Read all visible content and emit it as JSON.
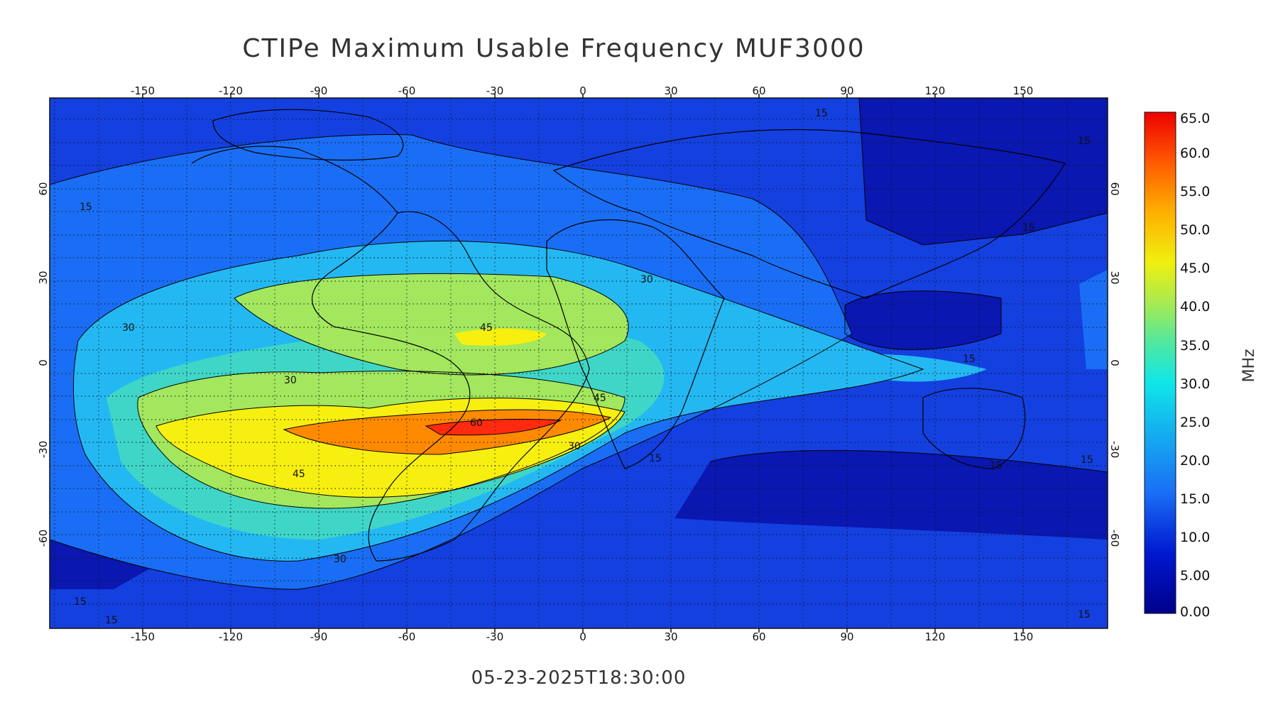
{
  "title": "CTIPe Maximum Usable Frequency MUF3000",
  "timestamp": "05-23-2025T18:30:00",
  "map": {
    "lon_ticks": [
      "-150",
      "-120",
      "-90",
      "-60",
      "-30",
      "0",
      "30",
      "60",
      "90",
      "120",
      "150"
    ],
    "lat_ticks": [
      "60",
      "30",
      "0",
      "-30",
      "-60"
    ],
    "contour_labels": [
      "15",
      "15",
      "15",
      "15",
      "15",
      "15",
      "15",
      "15",
      "15",
      "30",
      "30",
      "30",
      "30",
      "30",
      "30",
      "45",
      "45",
      "45",
      "60",
      "15",
      "15"
    ]
  },
  "colorbar": {
    "unit": "MHz",
    "labels": [
      "65.0",
      "60.0",
      "55.0",
      "50.0",
      "45.0",
      "40.0",
      "35.0",
      "30.0",
      "25.0",
      "20.0",
      "15.0",
      "10.0",
      "5.00",
      "0.00"
    ]
  },
  "colors": {
    "lvl0": "#0a17b0",
    "lvl1": "#1440e0",
    "lvl2": "#1a6ef5",
    "lvl3": "#24b8f2",
    "lvl4": "#3fd6c8",
    "lvl5": "#a2e75e",
    "lvl6": "#f7ef10",
    "lvl7": "#ff8a00",
    "lvl8": "#ff2a10"
  }
}
